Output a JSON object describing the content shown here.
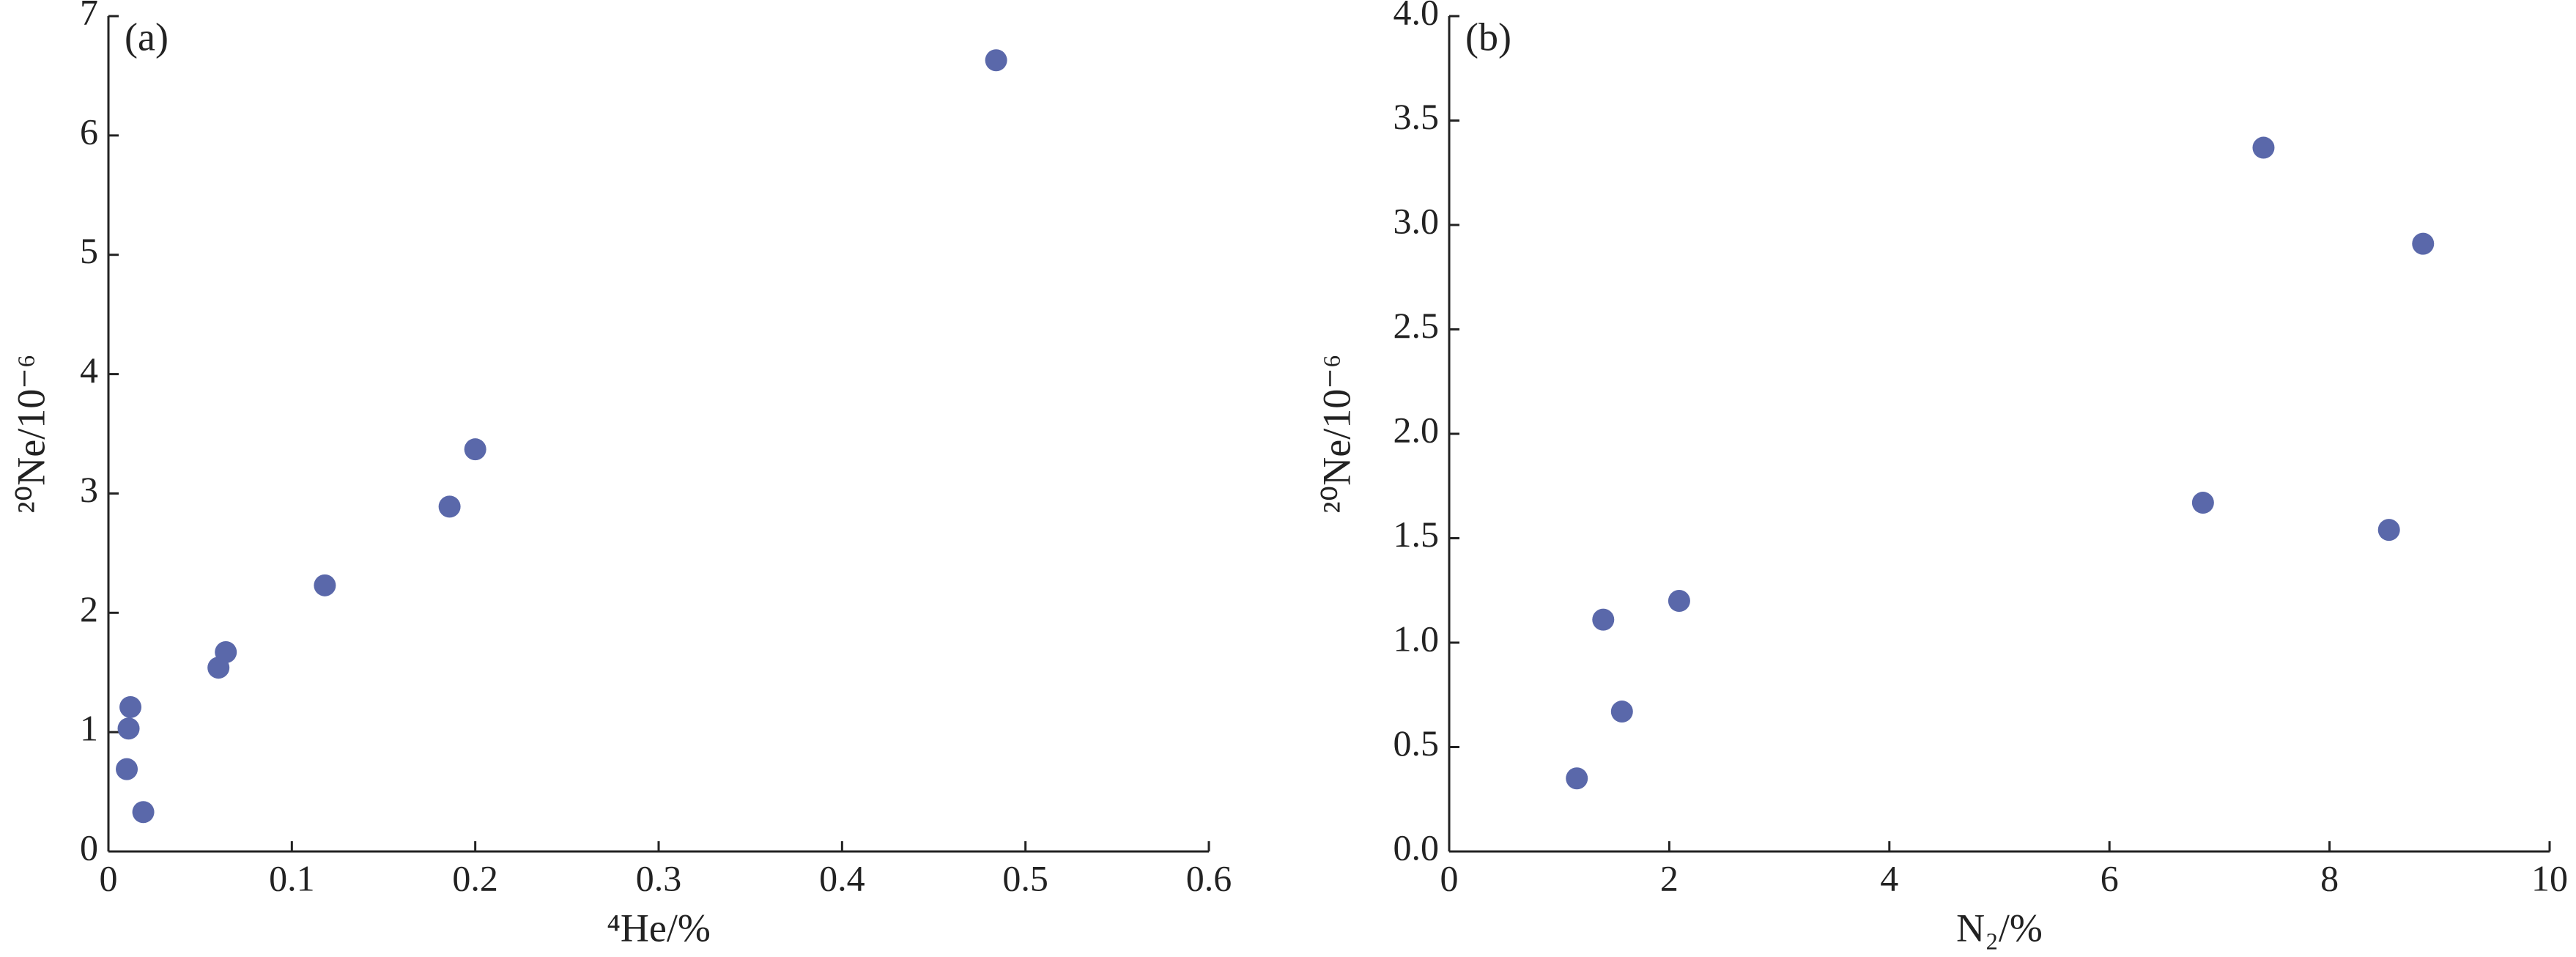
{
  "chart_data": [
    {
      "type": "scatter",
      "title": "(a)",
      "x_label": "⁴He/%",
      "y_label": "²⁰Ne/10⁻⁶",
      "color": "#5a68aa",
      "x": [
        0.484,
        0.2,
        0.186,
        0.118,
        0.064,
        0.06,
        0.012,
        0.011,
        0.01,
        0.019
      ],
      "values": [
        6.63,
        3.37,
        2.89,
        2.23,
        1.67,
        1.54,
        1.21,
        1.03,
        0.69,
        0.33
      ],
      "xlim": [
        0,
        0.6
      ],
      "xticks": [
        0,
        0.1,
        0.2,
        0.3,
        0.4,
        0.5,
        0.6
      ],
      "ylim": [
        0,
        7
      ],
      "yticks": [
        0,
        1,
        2,
        3,
        4,
        5,
        6,
        7
      ],
      "grid": false
    },
    {
      "type": "scatter",
      "title": "(b)",
      "x_label": "N₂/%",
      "y_label": "²⁰Ne/10⁻⁶",
      "color": "#5a68aa",
      "x": [
        1.16,
        1.4,
        1.57,
        2.09,
        6.85,
        7.4,
        8.54,
        8.85
      ],
      "values": [
        0.35,
        1.11,
        0.67,
        1.2,
        1.67,
        3.37,
        1.54,
        2.91
      ],
      "xlim": [
        0,
        10
      ],
      "xticks": [
        0,
        2,
        4,
        6,
        8,
        10
      ],
      "ylim": [
        0,
        4
      ],
      "yticks": [
        {
          "value": 0,
          "label": "0.0"
        },
        0.5,
        {
          "value": 1,
          "label": "1.0"
        },
        1.5,
        {
          "value": 2,
          "label": "2.0"
        },
        2.5,
        {
          "value": 3,
          "label": "3.0"
        },
        3.5,
        {
          "value": 4,
          "label": "4.0"
        }
      ],
      "grid": false
    }
  ]
}
